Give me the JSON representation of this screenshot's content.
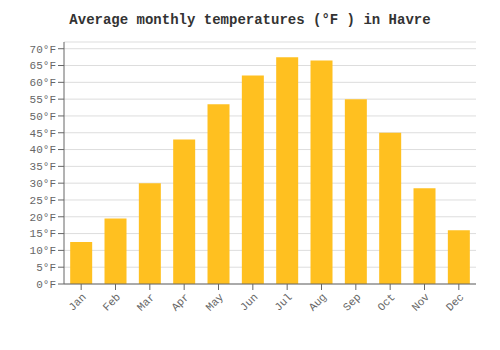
{
  "chart_data": {
    "type": "bar",
    "title": "Average monthly temperatures (°F ) in Havre",
    "categories": [
      "Jan",
      "Feb",
      "Mar",
      "Apr",
      "May",
      "Jun",
      "Jul",
      "Aug",
      "Sep",
      "Oct",
      "Nov",
      "Dec"
    ],
    "values": [
      12.5,
      19.5,
      30.0,
      43.0,
      53.5,
      62.0,
      67.5,
      66.5,
      55.0,
      45.0,
      28.5,
      16.0
    ],
    "color": "#FFC020",
    "ylim": [
      0,
      72
    ],
    "yticks": [
      {
        "value": 0,
        "label": "0°F"
      },
      {
        "value": 5,
        "label": "5°F"
      },
      {
        "value": 10,
        "label": "10°F"
      },
      {
        "value": 15,
        "label": "15°F"
      },
      {
        "value": 20,
        "label": "20°F"
      },
      {
        "value": 25,
        "label": "25°F"
      },
      {
        "value": 30,
        "label": "30°F"
      },
      {
        "value": 35,
        "label": "35°F"
      },
      {
        "value": 40,
        "label": "40°F"
      },
      {
        "value": 45,
        "label": "45°F"
      },
      {
        "value": 50,
        "label": "50°F"
      },
      {
        "value": 55,
        "label": "55°F"
      },
      {
        "value": 60,
        "label": "60°F"
      },
      {
        "value": 65,
        "label": "65°F"
      },
      {
        "value": 70,
        "label": "70°F"
      }
    ],
    "grid": true
  }
}
